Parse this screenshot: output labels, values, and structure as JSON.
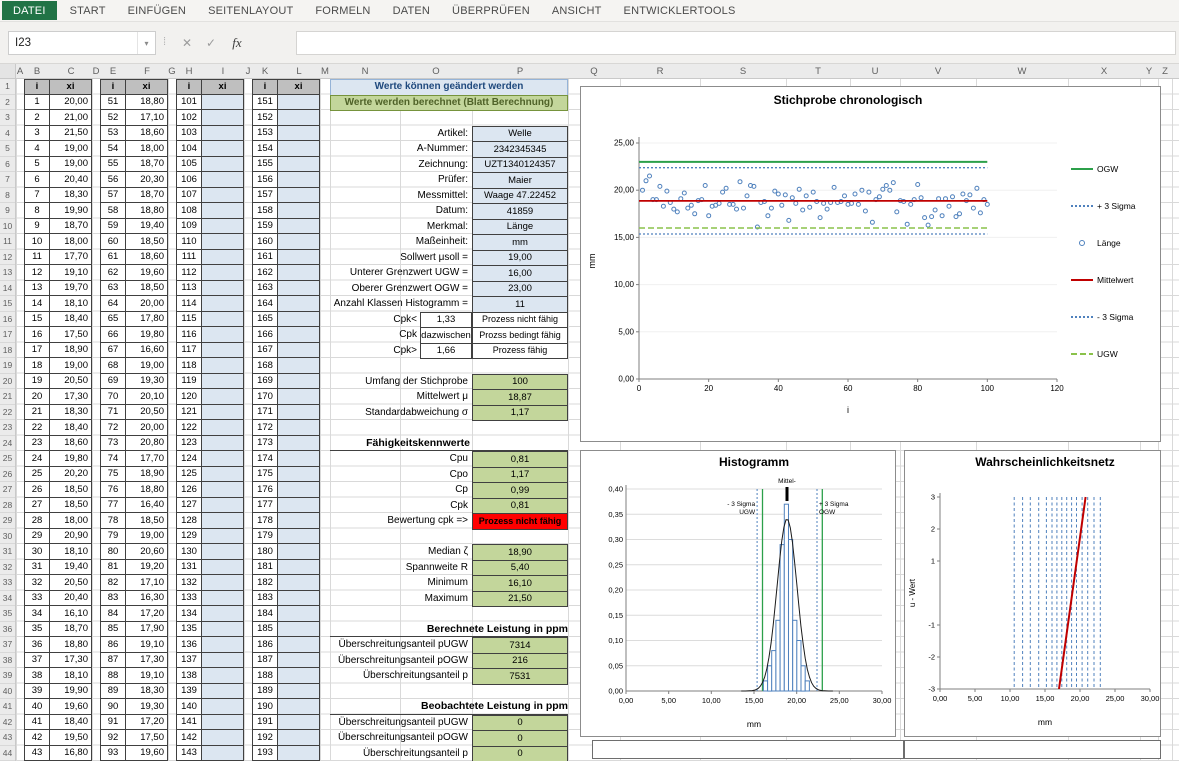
{
  "ribbon": {
    "tabs": [
      "DATEI",
      "START",
      "EINFÜGEN",
      "SEITENLAYOUT",
      "FORMELN",
      "DATEN",
      "ÜBERPRÜFEN",
      "ANSICHT",
      "ENTWICKLERTOOLS"
    ],
    "active_tab": "DATEI"
  },
  "formula_bar": {
    "name_box": "I23",
    "fx_label": "fx",
    "formula_value": ""
  },
  "sheet": {
    "col_letters": [
      "A",
      "B",
      "C",
      "D",
      "E",
      "F",
      "G",
      "H",
      "I",
      "J",
      "K",
      "L",
      "M",
      "N",
      "O",
      "P",
      "Q",
      "R",
      "S",
      "T",
      "U",
      "V",
      "W",
      "X",
      "Y",
      "Z"
    ],
    "visible_rows": 44,
    "table": {
      "col_i_header": "i",
      "col_xi_header": "xi",
      "groups": [
        {
          "i_start": 1,
          "i_end": 43,
          "xi": [
            "20,00",
            "21,00",
            "21,50",
            "19,00",
            "19,00",
            "20,40",
            "18,30",
            "19,90",
            "18,70",
            "18,00",
            "17,70",
            "19,10",
            "19,70",
            "18,10",
            "18,40",
            "17,50",
            "18,90",
            "19,00",
            "20,50",
            "17,30",
            "18,30",
            "18,40",
            "18,60",
            "19,80",
            "20,20",
            "18,50",
            "18,50",
            "18,00",
            "20,90",
            "18,10",
            "19,40",
            "20,50",
            "20,40",
            "16,10",
            "18,70",
            "18,80",
            "17,30",
            "18,10",
            "19,90",
            "19,60",
            "18,40",
            "19,50",
            "16,80"
          ]
        },
        {
          "i_start": 51,
          "i_end": 93,
          "xi": [
            "18,80",
            "17,10",
            "18,60",
            "18,00",
            "18,70",
            "20,30",
            "18,70",
            "18,80",
            "19,40",
            "18,50",
            "18,60",
            "19,60",
            "18,50",
            "20,00",
            "17,80",
            "19,80",
            "16,60",
            "19,00",
            "19,30",
            "20,10",
            "20,50",
            "20,00",
            "20,80",
            "17,70",
            "18,90",
            "18,80",
            "16,40",
            "18,50",
            "19,00",
            "20,60",
            "19,20",
            "17,10",
            "16,30",
            "17,20",
            "17,90",
            "19,10",
            "17,30",
            "19,10",
            "18,30",
            "19,30",
            "17,20",
            "17,50",
            "19,60"
          ]
        },
        {
          "i_start": 101,
          "i_end": 143,
          "xi": []
        },
        {
          "i_start": 151,
          "i_end": 193,
          "xi": []
        }
      ]
    },
    "form": {
      "banner_editable": "Werte können geändert werden",
      "banner_computed": "Werte werden berechnet (Blatt Berechnung)",
      "info": [
        {
          "label": "Artikel:",
          "value": "Welle"
        },
        {
          "label": "A-Nummer:",
          "value": "2342345345"
        },
        {
          "label": "Zeichnung:",
          "value": "UZT1340124357"
        },
        {
          "label": "Prüfer:",
          "value": "Maier"
        },
        {
          "label": "Messmittel:",
          "value": "Waage 47.22452"
        },
        {
          "label": "Datum:",
          "value": "41859"
        },
        {
          "label": "Merkmal:",
          "value": "Länge"
        },
        {
          "label": "Maßeinheit:",
          "value": "mm"
        }
      ],
      "limits": [
        {
          "label": "Sollwert μsoll =",
          "value": "19,00"
        },
        {
          "label": "Unterer Grenzwert UGW =",
          "value": "16,00"
        },
        {
          "label": "Oberer Grenzwert OGW =",
          "value": "23,00"
        },
        {
          "label": "Anzahl Klassen Histogramm =",
          "value": "11"
        }
      ],
      "cpk_rules": [
        {
          "name": "Cpk<",
          "threshold": "1,33",
          "verdict": "Prozess nicht fähig"
        },
        {
          "name": "Cpk",
          "threshold": "dazwischen",
          "verdict": "Prozss bedingt fähig"
        },
        {
          "name": "Cpk>",
          "threshold": "1,66",
          "verdict": "Prozess fähig"
        }
      ],
      "stats": [
        {
          "label": "Umfang der Stichprobe",
          "value": "100"
        },
        {
          "label": "Mittelwert μ",
          "value": "18,87"
        },
        {
          "label": "Standardabweichung σ",
          "value": "1,17"
        }
      ],
      "faehigkeit_header": "Fähigkeitskennwerte",
      "faehigkeit": [
        {
          "label": "Cpu",
          "value": "0,81"
        },
        {
          "label": "Cpo",
          "value": "1,17"
        },
        {
          "label": "Cp",
          "value": "0,99"
        },
        {
          "label": "Cpk",
          "value": "0,81"
        }
      ],
      "bewertung": {
        "label": "Bewertung cpk =>",
        "value": "Prozess nicht fähig"
      },
      "verteilung": [
        {
          "label": "Median ζ",
          "value": "18,90"
        },
        {
          "label": "Spannweite R",
          "value": "5,40"
        },
        {
          "label": "Minimum",
          "value": "16,10"
        },
        {
          "label": "Maximum",
          "value": "21,50"
        }
      ],
      "berechnet_header": "Berechnete Leistung in ppm",
      "berechnet": [
        {
          "label": "Überschreitungsanteil pUGW",
          "value": "7314"
        },
        {
          "label": "Überschreitungsanteil pOGW",
          "value": "216"
        },
        {
          "label": "Überschreitungsanteil p",
          "value": "7531"
        }
      ],
      "beobachtet_header": "Beobachtete Leistung in ppm",
      "beobachtet": [
        {
          "label": "Überschreitungsanteil pUGW",
          "value": "0"
        },
        {
          "label": "Überschreitungsanteil pOGW",
          "value": "0"
        },
        {
          "label": "Überschreitungsanteil p",
          "value": "0"
        }
      ]
    }
  },
  "colors": {
    "accent_green": "#217346",
    "cell_blue": "#DCE6F1",
    "cell_green": "#C3D69B",
    "cell_red": "#FF0000",
    "series_blue": "#4F81BD",
    "line_red": "#C00000",
    "line_green": "#2CA04A",
    "line_light_green": "#8AC24A"
  },
  "chart_data": [
    {
      "type": "scatter",
      "title": "Stichprobe chronologisch",
      "xlabel": "i",
      "ylabel": "mm",
      "xlim": [
        0,
        120
      ],
      "xticks": [
        0,
        20,
        40,
        60,
        80,
        100,
        120
      ],
      "ylim": [
        0,
        25
      ],
      "yticks": [
        "0,00",
        "5,00",
        "10,00",
        "15,00",
        "20,00",
        "25,00"
      ],
      "yticks_v": [
        0,
        5,
        10,
        15,
        20,
        25
      ],
      "series": {
        "name": "Länge",
        "x_start": 1,
        "y": [
          20,
          21,
          21.5,
          19,
          19,
          20.4,
          18.3,
          19.9,
          18.7,
          18,
          17.7,
          19.1,
          19.7,
          18.1,
          18.4,
          17.5,
          18.9,
          19,
          20.5,
          17.3,
          18.3,
          18.4,
          18.6,
          19.8,
          20.2,
          18.5,
          18.5,
          18,
          20.9,
          18.1,
          19.4,
          20.5,
          20.4,
          16.1,
          18.7,
          18.8,
          17.3,
          18.1,
          19.9,
          19.6,
          18.4,
          19.5,
          16.8,
          19.2,
          18.6,
          20.1,
          17.9,
          19.4,
          18.2,
          19.8,
          18.8,
          17.1,
          18.6,
          18,
          18.7,
          20.3,
          18.7,
          18.8,
          19.4,
          18.5,
          18.6,
          19.6,
          18.5,
          20,
          17.8,
          19.8,
          16.6,
          19,
          19.3,
          20.1,
          20.5,
          20,
          20.8,
          17.7,
          18.9,
          18.8,
          16.4,
          18.5,
          19,
          20.6,
          19.2,
          17.1,
          16.3,
          17.2,
          17.9,
          19.1,
          17.3,
          19.1,
          18.3,
          19.3,
          17.2,
          17.5,
          19.6,
          18.9,
          19.5,
          18.1,
          20.2,
          17.6,
          19,
          18.5
        ]
      },
      "ref_lines": [
        {
          "label": "OGW",
          "value": 23,
          "color": "#2CA04A",
          "dash": "",
          "w": 2
        },
        {
          "label": "+ 3 Sigma",
          "value": 22.38,
          "color": "#4F81BD",
          "dash": "2 2",
          "w": 1.3
        },
        {
          "label": "Mittelwert",
          "value": 18.87,
          "color": "#C00000",
          "dash": "",
          "w": 1.8
        },
        {
          "label": "- 3 Sigma",
          "value": 15.36,
          "color": "#4F81BD",
          "dash": "2 2",
          "w": 1.3
        },
        {
          "label": "UGW",
          "value": 16,
          "color": "#8AC24A",
          "dash": "6 3",
          "w": 1.6
        }
      ],
      "legend": [
        {
          "label": "OGW",
          "type": "line",
          "color": "#2CA04A",
          "dash": ""
        },
        {
          "label": "+ 3 Sigma",
          "type": "line",
          "color": "#4F81BD",
          "dash": "2 2"
        },
        {
          "label": "Länge",
          "type": "marker",
          "color": "#4F81BD",
          "dash": ""
        },
        {
          "label": "Mittelwert",
          "type": "line",
          "color": "#C00000",
          "dash": ""
        },
        {
          "label": "- 3 Sigma",
          "type": "line",
          "color": "#4F81BD",
          "dash": "2 2"
        },
        {
          "label": "UGW",
          "type": "line",
          "color": "#8AC24A",
          "dash": "6 3"
        }
      ],
      "legend_position": "right"
    },
    {
      "type": "bar",
      "title": "Histogramm",
      "xlabel": "mm",
      "xlim": [
        0,
        30
      ],
      "xticks": [
        "0,00",
        "5,00",
        "10,00",
        "15,00",
        "20,00",
        "25,00",
        "30,00"
      ],
      "xticks_v": [
        0,
        5,
        10,
        15,
        20,
        25,
        30
      ],
      "ylim": [
        0,
        0.4
      ],
      "yticks": [
        "0,00",
        "0,05",
        "0,10",
        "0,15",
        "0,20",
        "0,25",
        "0,30",
        "0,35",
        "0,40"
      ],
      "yticks_v": [
        0,
        0.05,
        0.1,
        0.15,
        0.2,
        0.25,
        0.3,
        0.35,
        0.4
      ],
      "bin_start": 16.1,
      "bin_width": 0.49,
      "values": [
        0.02,
        0.05,
        0.08,
        0.14,
        0.29,
        0.37,
        0.3,
        0.14,
        0.1,
        0.05,
        0.02
      ],
      "normal_curve": {
        "mean": 18.87,
        "sigma": 1.17
      },
      "ugw": 16,
      "ogw": 23,
      "sigma3_low": 15.36,
      "sigma3_high": 22.38,
      "mean": 18.87,
      "label_mean": "Mittel-",
      "label_sigma_low": "- 3 Sigma",
      "label_ugw": "UGW",
      "label_sigma_high": "+ 3 Sigma",
      "label_ogw": "OGW",
      "grid": true
    },
    {
      "type": "line",
      "title": "Wahrscheinlichkeitsnetz",
      "xlabel": "mm",
      "ylabel": "u - Wert",
      "xlim": [
        0,
        30
      ],
      "xticks": [
        "0,00",
        "5,00",
        "10,00",
        "15,00",
        "20,00",
        "25,00",
        "30,00"
      ],
      "xticks_v": [
        0,
        5,
        10,
        15,
        20,
        25,
        30
      ],
      "ylim": [
        -3,
        3
      ],
      "yticks": [
        3,
        2,
        1,
        -1,
        -2,
        -3
      ],
      "fit_line": {
        "x_bottom": 17.0,
        "x_top": 20.8,
        "color": "#C00000"
      },
      "vlines": [
        10.6,
        11.8,
        12.9,
        14.1,
        15.2,
        16.0,
        16.7,
        17.4,
        18.1,
        18.8,
        19.5,
        20.3,
        21.1,
        22.0,
        22.9
      ],
      "vline_color": "#4F81BD"
    }
  ]
}
